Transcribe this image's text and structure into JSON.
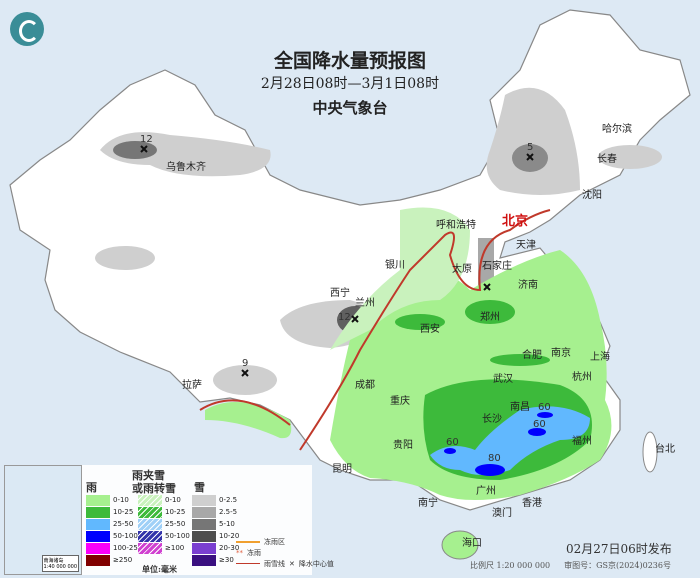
{
  "header": {
    "title": "全国降水量预报图",
    "period": "2月28日08时—3月1日08时",
    "issuer": "中央气象台"
  },
  "cities": [
    "乌鲁木齐",
    "哈尔滨",
    "长春",
    "沈阳",
    "北京",
    "天津",
    "呼和浩特",
    "石家庄",
    "太原",
    "济南",
    "银川",
    "西宁",
    "兰州",
    "西安",
    "郑州",
    "合肥",
    "南京",
    "上海",
    "杭州",
    "武汉",
    "成都",
    "重庆",
    "拉萨",
    "长沙",
    "南昌",
    "福州",
    "贵阳",
    "昆明",
    "南宁",
    "广州",
    "香港",
    "澳门",
    "台北",
    "海口"
  ],
  "max_values": [
    "12",
    "5",
    "12",
    "9",
    "60",
    "60",
    "60",
    "80"
  ],
  "legend": {
    "rain": {
      "title": "雨",
      "ranges": [
        "0-10",
        "10-25",
        "25-50",
        "50-100",
        "100-250",
        "≥250"
      ],
      "colors": [
        "#a6f08f",
        "#3dba3b",
        "#61b8fe",
        "#0000fe",
        "#fa00fa",
        "#800000"
      ]
    },
    "mixed": {
      "title": "雨夹雪\n或雨转雪",
      "ranges": [
        "0-10",
        "10-25",
        "25-50",
        "50-100",
        "≥100"
      ],
      "colors": [
        "#c9f2bd",
        "#3dba3b",
        "#9fd0f7",
        "#3333aa",
        "#d040d0"
      ]
    },
    "snow": {
      "title": "雪",
      "ranges": [
        "0-2.5",
        "2.5-5",
        "5-10",
        "10-20",
        "20-30",
        "≥30"
      ],
      "colors": [
        "#cfcfcf",
        "#a8a8a8",
        "#767676",
        "#4d4d4d",
        "#7a3fd0",
        "#3a1080"
      ]
    },
    "unit": "单位:毫米",
    "freezing_rain_zone": "冻雨区",
    "freezing_rain": "冻雨",
    "snow_line": "雨雪线",
    "center_value": "降水中心值"
  },
  "inset": {
    "label": "南海诸岛",
    "scale": "1:40 000 000"
  },
  "footer": {
    "issued": "02月27日06时发布",
    "scale": "比例尺 1:20 000 000",
    "map_no": "审图号：GS京(2024)0236号"
  }
}
